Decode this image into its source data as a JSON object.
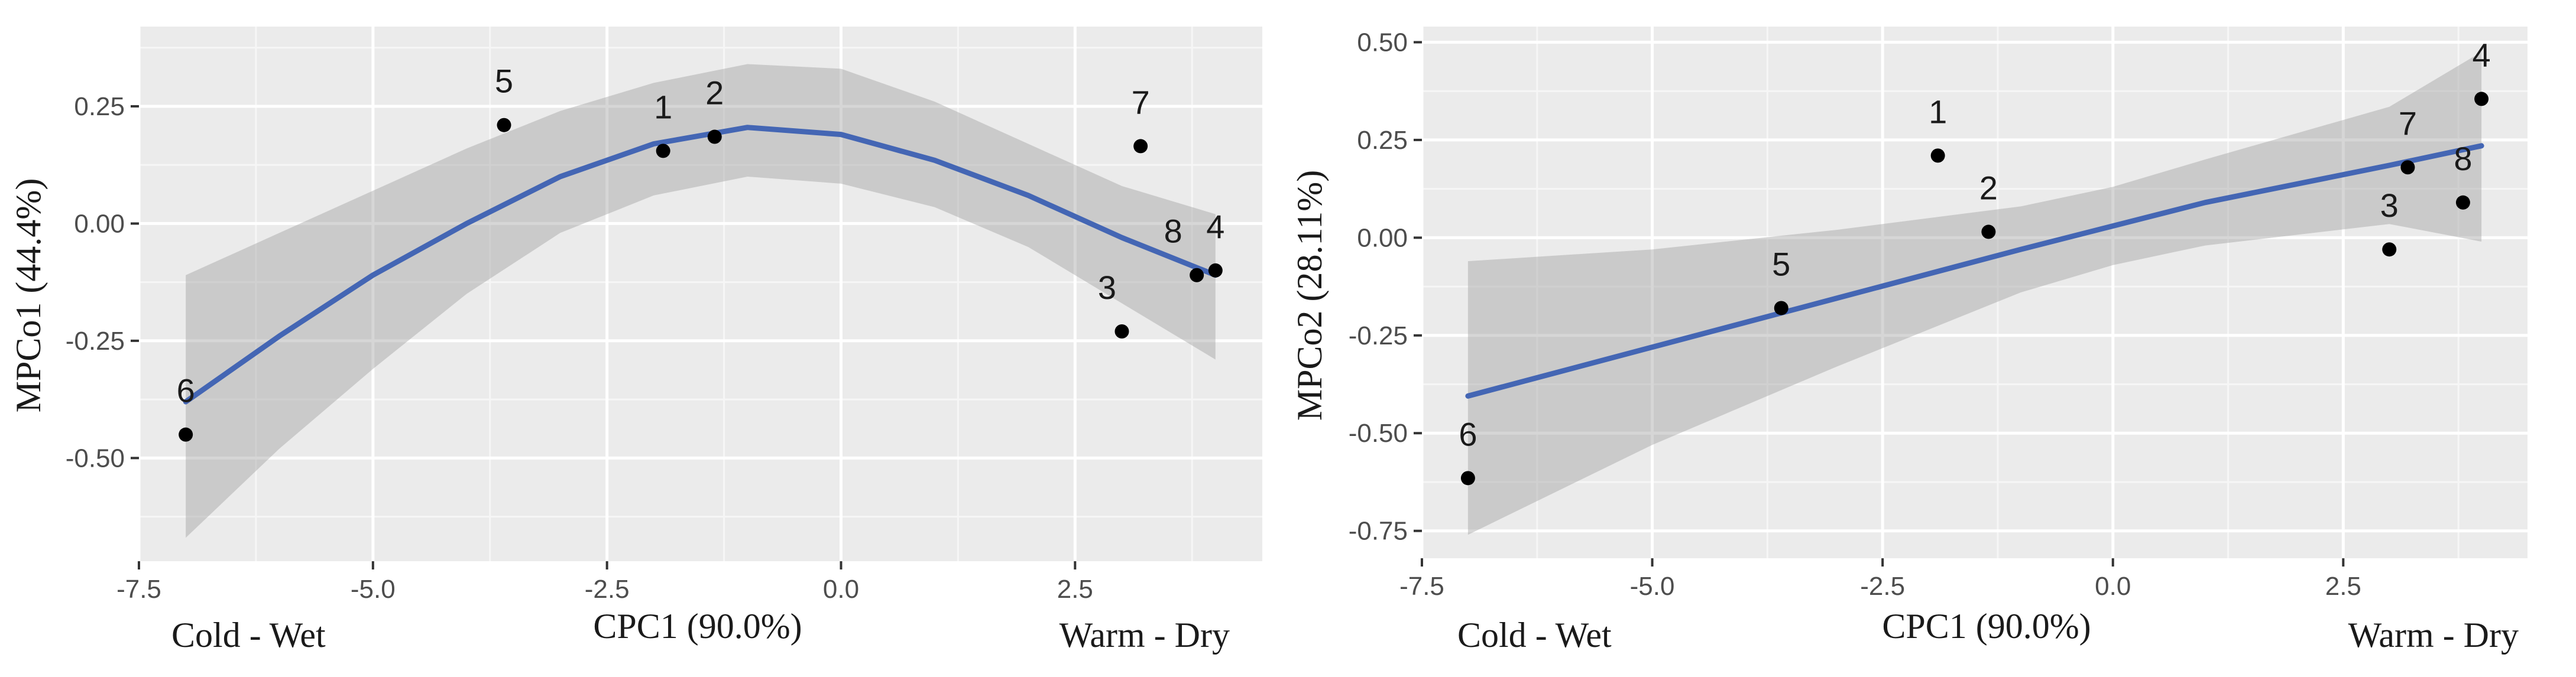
{
  "chart_data": [
    {
      "type": "scatter",
      "fit": "quadratic",
      "xlabel": "CPC1 (90.0%)",
      "ylabel": "MPCo1 (44.4%)",
      "left_label": "Cold - Wet",
      "right_label": "Warm - Dry",
      "xlim": [
        -7.5,
        4.5
      ],
      "ylim": [
        -0.72,
        0.42
      ],
      "x_ticks": [
        -7.5,
        -5.0,
        -2.5,
        0.0,
        2.5
      ],
      "x_tick_labels": [
        "-7.5",
        "-5.0",
        "-2.5",
        "0.0",
        "2.5"
      ],
      "y_ticks": [
        0.25,
        0.0,
        -0.25,
        -0.5
      ],
      "y_tick_labels": [
        "0.25",
        "0.00",
        "-0.25",
        "-0.50"
      ],
      "grid": true,
      "points": [
        {
          "label": "1",
          "x": -1.9,
          "y": 0.155
        },
        {
          "label": "2",
          "x": -1.35,
          "y": 0.185
        },
        {
          "label": "3",
          "x": 3.0,
          "y": -0.23
        },
        {
          "label": "4",
          "x": 4.0,
          "y": -0.1
        },
        {
          "label": "5",
          "x": -3.6,
          "y": 0.21
        },
        {
          "label": "6",
          "x": -7.0,
          "y": -0.45
        },
        {
          "label": "7",
          "x": 3.2,
          "y": 0.165
        },
        {
          "label": "8",
          "x": 3.8,
          "y": -0.11
        }
      ],
      "fit_line": {
        "color": "#4466b4",
        "x": [
          -7.0,
          -6.0,
          -5.0,
          -4.0,
          -3.0,
          -2.0,
          -1.0,
          0.0,
          1.0,
          2.0,
          3.0,
          4.0
        ],
        "y": [
          -0.38,
          -0.24,
          -0.11,
          0.0,
          0.1,
          0.17,
          0.205,
          0.19,
          0.135,
          0.06,
          -0.03,
          -0.11
        ],
        "ci_lower": [
          -0.67,
          -0.48,
          -0.31,
          -0.15,
          -0.02,
          0.06,
          0.1,
          0.085,
          0.035,
          -0.05,
          -0.17,
          -0.29
        ],
        "ci_upper": [
          -0.11,
          -0.02,
          0.07,
          0.16,
          0.24,
          0.3,
          0.34,
          0.33,
          0.26,
          0.17,
          0.08,
          0.02
        ]
      }
    },
    {
      "type": "scatter",
      "fit": "linear",
      "xlabel": "CPC1 (90.0%)",
      "ylabel": "MPCo2 (28.11%)",
      "left_label": "Cold - Wet",
      "right_label": "Warm - Dry",
      "xlim": [
        -7.5,
        4.5
      ],
      "ylim": [
        -0.82,
        0.54
      ],
      "x_ticks": [
        -7.5,
        -5.0,
        -2.5,
        0.0,
        2.5
      ],
      "x_tick_labels": [
        "-7.5",
        "-5.0",
        "-2.5",
        "0.0",
        "2.5"
      ],
      "y_ticks": [
        0.5,
        0.25,
        0.0,
        -0.25,
        -0.5,
        -0.75
      ],
      "y_tick_labels": [
        "0.50",
        "0.25",
        "0.00",
        "-0.25",
        "-0.50",
        "-0.75"
      ],
      "grid": true,
      "points": [
        {
          "label": "1",
          "x": -1.9,
          "y": 0.21
        },
        {
          "label": "2",
          "x": -1.35,
          "y": 0.015
        },
        {
          "label": "3",
          "x": 3.0,
          "y": -0.03
        },
        {
          "label": "4",
          "x": 4.0,
          "y": 0.355
        },
        {
          "label": "5",
          "x": -3.6,
          "y": -0.18
        },
        {
          "label": "6",
          "x": -7.0,
          "y": -0.615
        },
        {
          "label": "7",
          "x": 3.2,
          "y": 0.18
        },
        {
          "label": "8",
          "x": 3.8,
          "y": 0.09
        }
      ],
      "fit_line": {
        "color": "#4466b4",
        "x": [
          -7.0,
          -5.0,
          -3.0,
          -1.0,
          0.0,
          1.0,
          3.0,
          4.0
        ],
        "y": [
          -0.405,
          -0.28,
          -0.155,
          -0.03,
          0.03,
          0.09,
          0.185,
          0.235
        ],
        "ci_lower": [
          -0.76,
          -0.53,
          -0.33,
          -0.14,
          -0.07,
          -0.02,
          0.035,
          -0.01
        ],
        "ci_upper": [
          -0.06,
          -0.03,
          0.02,
          0.08,
          0.13,
          0.2,
          0.335,
          0.475
        ]
      }
    }
  ]
}
